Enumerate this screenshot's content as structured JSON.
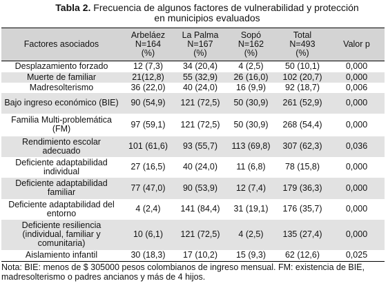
{
  "title": {
    "label": "Tabla 2.",
    "text": "Frecuencia de algunos factores de vulnerabilidad y protección en municipios evaluados"
  },
  "table": {
    "header": [
      "Factores asociados",
      "Arbeláez N=164 (%)",
      "La Palma N=167 (%)",
      "Sopó N=162 (%)",
      "Total N=493 (%)",
      "Valor p"
    ],
    "rows": [
      [
        "Desplazamiento forzado",
        "12 (7,3)",
        "34 (20,4)",
        "4 (2,5)",
        "50 (10,1)",
        "0,000"
      ],
      [
        "Muerte de familiar",
        "21(12,8)",
        "55 (32,9)",
        "26 (16,0)",
        "102 (20,7)",
        "0,000"
      ],
      [
        "Madresolterismo",
        "36 (22,0)",
        "40 (24,0)",
        "16 (9,9)",
        "92 (18,7)",
        "0,006"
      ],
      [
        "Bajo ingreso económico (BIE)",
        "90 (54,9)",
        "121 (72,5)",
        "50 (30,9)",
        "261 (52,9)",
        "0,000"
      ],
      [
        "Familia Multi-problemática (FM)",
        "97 (59,1)",
        "121 (72,5)",
        "50 (30,9)",
        "268 (54,4)",
        "0,000"
      ],
      [
        "Rendimiento escolar adecuado",
        "101 (61,6)",
        "93 (55,7)",
        "113 (69,8)",
        "307 (62,3)",
        "0,036"
      ],
      [
        "Deficiente adaptabilidad individual",
        "27 (16,5)",
        "40 (24,0)",
        "11 (6,8)",
        "78 (15,8)",
        "0,000"
      ],
      [
        "Deficiente adaptabilidad familiar",
        "77 (47,0)",
        "90 (53,9)",
        "12 (7,4)",
        "179 (36,3)",
        "0,000"
      ],
      [
        "Deficiente adaptabilidad del entorno",
        "4 (2,4)",
        "141 (84,4)",
        "31 (19,1)",
        "176 (35,7)",
        "0,000"
      ],
      [
        "Deficiente resiliencia (individual, familiar y comunitaria)",
        "10 (6,1)",
        "121 (72,5)",
        "4 (2,5)",
        "135 (27,4)",
        "0,000"
      ],
      [
        "Aislamiento infantil",
        "30 (18,3)",
        "17 (10,2)",
        "15 (9,3)",
        "62 (12,6)",
        "0,025"
      ]
    ]
  },
  "note": "Nota: BIE: menos de $ 305000 pesos colombianos de ingreso mensual. FM: existencia de BIE, madresolterismo o padres ancianos y más de 4 hijos."
}
